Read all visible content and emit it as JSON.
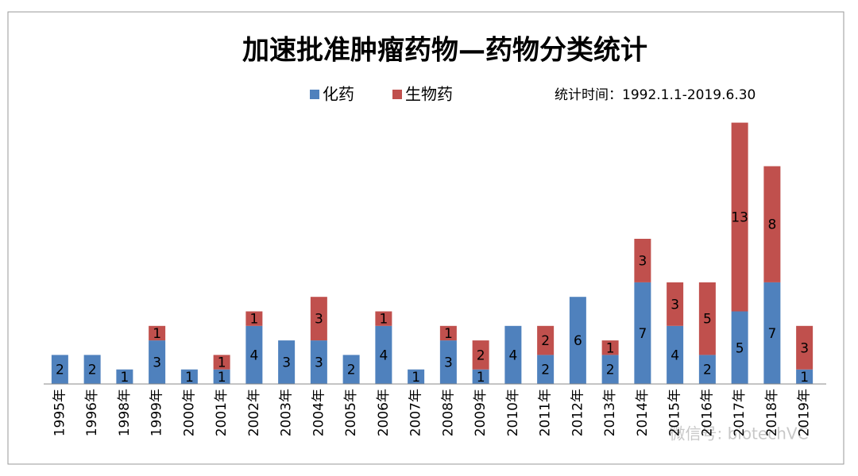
{
  "chart_data": {
    "type": "stacked_bar",
    "title": "加速批准肿瘤药物—药物分类统计",
    "subtitle": "统计时间：1992.1.1-2019.6.30",
    "watermark": "微信号: biotechVC",
    "categories": [
      "1995年",
      "1996年",
      "1998年",
      "1999年",
      "2000年",
      "2001年",
      "2002年",
      "2003年",
      "2004年",
      "2005年",
      "2006年",
      "2007年",
      "2008年",
      "2009年",
      "2010年",
      "2011年",
      "2012年",
      "2013年",
      "2014年",
      "2015年",
      "2016年",
      "2017年",
      "2018年",
      "2019年"
    ],
    "series": [
      {
        "name": "化药",
        "color": "#4f81bd",
        "values": [
          2,
          2,
          1,
          3,
          1,
          1,
          4,
          3,
          3,
          2,
          4,
          1,
          3,
          1,
          4,
          2,
          6,
          2,
          7,
          4,
          2,
          5,
          7,
          1
        ]
      },
      {
        "name": "生物药",
        "color": "#c0504d",
        "values": [
          null,
          null,
          null,
          1,
          null,
          1,
          1,
          null,
          3,
          null,
          1,
          null,
          1,
          2,
          null,
          2,
          null,
          1,
          3,
          3,
          5,
          13,
          8,
          3
        ]
      }
    ],
    "ylim": [
      0,
      20
    ]
  }
}
